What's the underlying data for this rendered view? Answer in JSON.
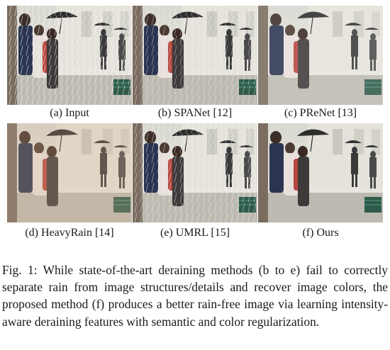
{
  "figure": {
    "panels": [
      {
        "label": "(a) Input",
        "style": "rainy"
      },
      {
        "label": "(b) SPANet [12]",
        "style": "rainy"
      },
      {
        "label": "(c) PReNet [13]",
        "style": "hazy"
      },
      {
        "label": "(d) HeavyRain [14]",
        "style": "warm"
      },
      {
        "label": "(e) UMRL [15]",
        "style": "rainy"
      },
      {
        "label": "(f) Ours",
        "style": "clear"
      }
    ],
    "caption": "Fig. 1: While state-of-the-art deraining methods (b to e) fail to correctly separate rain from image structures/details and recover image colors, the proposed method (f) produces a better rain-free image via learning intensity-aware deraining features with semantic and color regularization."
  }
}
